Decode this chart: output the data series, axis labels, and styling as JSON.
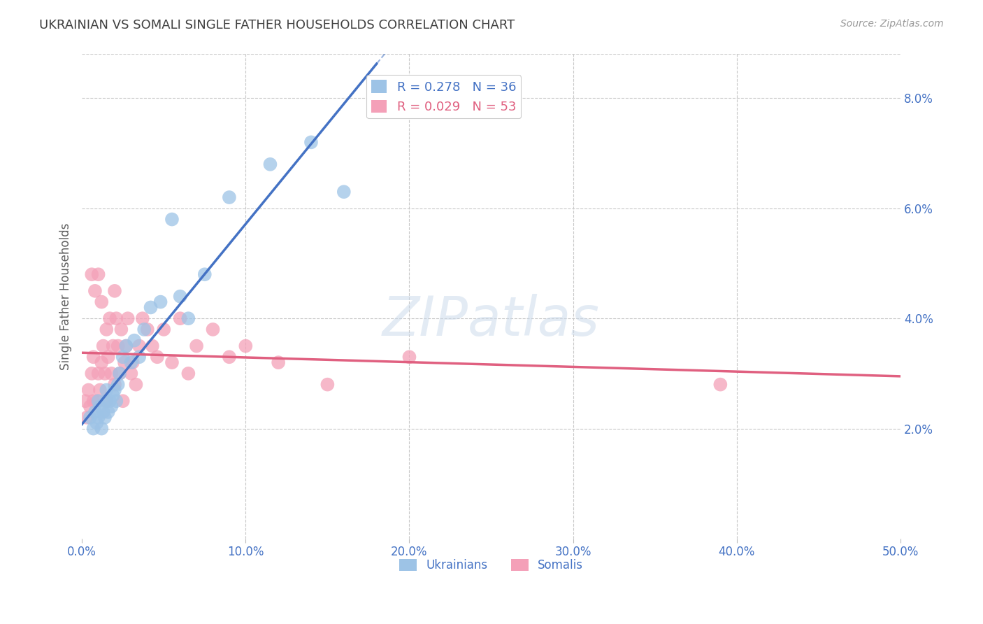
{
  "title": "UKRAINIAN VS SOMALI SINGLE FATHER HOUSEHOLDS CORRELATION CHART",
  "source": "Source: ZipAtlas.com",
  "ylabel": "Single Father Households",
  "xlim": [
    0.0,
    0.5
  ],
  "ylim": [
    0.0,
    0.088
  ],
  "xticks": [
    0.0,
    0.1,
    0.2,
    0.3,
    0.4,
    0.5
  ],
  "xticklabels": [
    "0.0%",
    "10.0%",
    "20.0%",
    "30.0%",
    "40.0%",
    "50.0%"
  ],
  "yticks": [
    0.02,
    0.04,
    0.06,
    0.08
  ],
  "yticklabels": [
    "2.0%",
    "4.0%",
    "6.0%",
    "8.0%"
  ],
  "legend_R_N": [
    {
      "label": "R = 0.278   N = 36",
      "color": "#4472c4"
    },
    {
      "label": "R = 0.029   N = 53",
      "color": "#e06080"
    }
  ],
  "ukrainians_x": [
    0.005,
    0.007,
    0.008,
    0.009,
    0.01,
    0.01,
    0.011,
    0.012,
    0.013,
    0.014,
    0.015,
    0.015,
    0.016,
    0.017,
    0.018,
    0.019,
    0.02,
    0.021,
    0.022,
    0.023,
    0.025,
    0.027,
    0.03,
    0.032,
    0.035,
    0.038,
    0.042,
    0.048,
    0.055,
    0.06,
    0.065,
    0.075,
    0.09,
    0.115,
    0.14,
    0.16
  ],
  "ukrainians_y": [
    0.022,
    0.02,
    0.023,
    0.021,
    0.025,
    0.022,
    0.024,
    0.02,
    0.023,
    0.022,
    0.025,
    0.027,
    0.023,
    0.025,
    0.024,
    0.026,
    0.027,
    0.025,
    0.028,
    0.03,
    0.033,
    0.035,
    0.032,
    0.036,
    0.033,
    0.038,
    0.042,
    0.043,
    0.058,
    0.044,
    0.04,
    0.048,
    0.062,
    0.068,
    0.072,
    0.063
  ],
  "somalis_x": [
    0.002,
    0.003,
    0.004,
    0.005,
    0.006,
    0.006,
    0.007,
    0.007,
    0.008,
    0.009,
    0.01,
    0.01,
    0.011,
    0.012,
    0.012,
    0.013,
    0.014,
    0.015,
    0.015,
    0.016,
    0.017,
    0.018,
    0.019,
    0.02,
    0.02,
    0.021,
    0.022,
    0.023,
    0.024,
    0.025,
    0.026,
    0.027,
    0.028,
    0.03,
    0.031,
    0.033,
    0.035,
    0.037,
    0.04,
    0.043,
    0.046,
    0.05,
    0.055,
    0.06,
    0.065,
    0.07,
    0.08,
    0.09,
    0.1,
    0.12,
    0.15,
    0.2,
    0.39
  ],
  "somalis_y": [
    0.025,
    0.022,
    0.027,
    0.024,
    0.048,
    0.03,
    0.025,
    0.033,
    0.045,
    0.025,
    0.03,
    0.048,
    0.027,
    0.043,
    0.032,
    0.035,
    0.03,
    0.025,
    0.038,
    0.033,
    0.04,
    0.03,
    0.035,
    0.045,
    0.028,
    0.04,
    0.035,
    0.03,
    0.038,
    0.025,
    0.032,
    0.035,
    0.04,
    0.03,
    0.032,
    0.028,
    0.035,
    0.04,
    0.038,
    0.035,
    0.033,
    0.038,
    0.032,
    0.04,
    0.03,
    0.035,
    0.038,
    0.033,
    0.035,
    0.032,
    0.028,
    0.033,
    0.028
  ],
  "ukr_line_color": "#4472c4",
  "som_line_color": "#e06080",
  "ukr_scatter_color": "#9dc3e6",
  "som_scatter_color": "#f4a0b8",
  "ukr_line_solid_end": 0.18,
  "watermark": "ZIPatlas",
  "background_color": "#ffffff",
  "grid_color": "#c8c8c8",
  "title_color": "#404040",
  "tick_color": "#4472c4"
}
